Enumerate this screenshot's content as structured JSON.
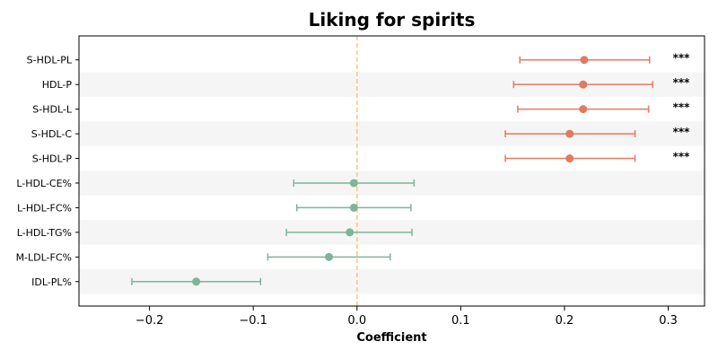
{
  "chart_data": {
    "type": "forest",
    "title": "Liking for spirits",
    "xlabel": "Coefficient",
    "xlim": [
      -0.268,
      0.335
    ],
    "xticks": [
      -0.2,
      -0.1,
      0.0,
      0.1,
      0.2,
      0.3
    ],
    "xtick_labels": [
      "−0.2",
      "−0.1",
      "0.0",
      "0.1",
      "0.2",
      "0.3"
    ],
    "reference_line": 0,
    "colors": {
      "significant": "#e07b62",
      "nonsignificant": "#7fb39a",
      "reference": "#f5c77e",
      "band": "#f5f5f5"
    },
    "rows": [
      {
        "label": "S-HDL-PL",
        "estimate": 0.219,
        "ci_low": 0.157,
        "ci_high": 0.282,
        "sig": "***"
      },
      {
        "label": "HDL-P",
        "estimate": 0.218,
        "ci_low": 0.151,
        "ci_high": 0.285,
        "sig": "***"
      },
      {
        "label": "S-HDL-L",
        "estimate": 0.218,
        "ci_low": 0.155,
        "ci_high": 0.281,
        "sig": "***"
      },
      {
        "label": "S-HDL-C",
        "estimate": 0.205,
        "ci_low": 0.143,
        "ci_high": 0.268,
        "sig": "***"
      },
      {
        "label": "S-HDL-P",
        "estimate": 0.205,
        "ci_low": 0.143,
        "ci_high": 0.268,
        "sig": "***"
      },
      {
        "label": "L-HDL-CE%",
        "estimate": -0.003,
        "ci_low": -0.061,
        "ci_high": 0.055,
        "sig": ""
      },
      {
        "label": "L-HDL-FC%",
        "estimate": -0.003,
        "ci_low": -0.058,
        "ci_high": 0.052,
        "sig": ""
      },
      {
        "label": "L-HDL-TG%",
        "estimate": -0.007,
        "ci_low": -0.068,
        "ci_high": 0.053,
        "sig": ""
      },
      {
        "label": "M-LDL-FC%",
        "estimate": -0.027,
        "ci_low": -0.086,
        "ci_high": 0.032,
        "sig": ""
      },
      {
        "label": "IDL-PL%",
        "estimate": -0.155,
        "ci_low": -0.217,
        "ci_high": -0.093,
        "sig": ""
      }
    ]
  }
}
